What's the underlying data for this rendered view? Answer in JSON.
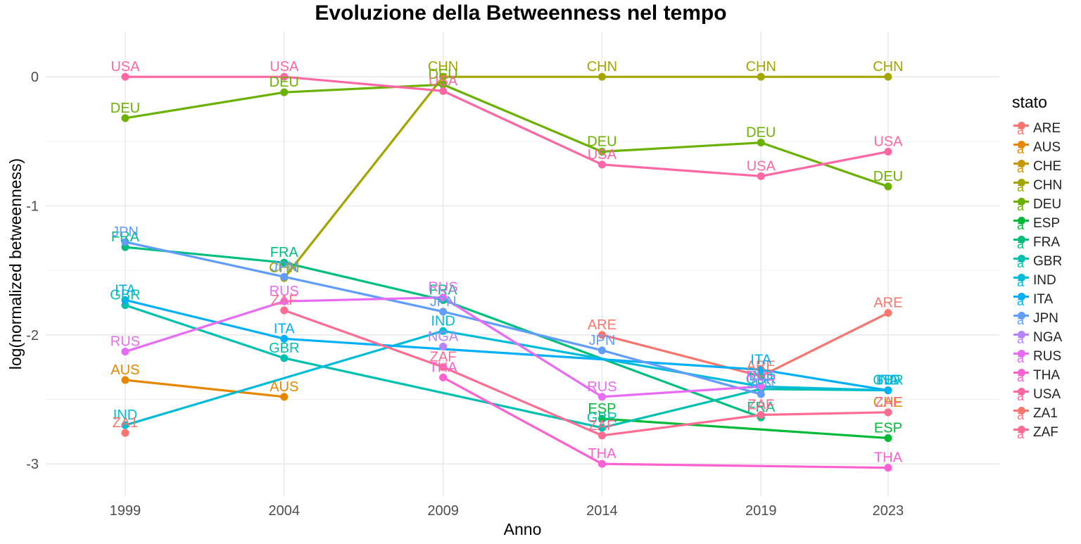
{
  "chart_data": {
    "type": "line",
    "title": "Evoluzione della Betweenness nel tempo",
    "xlabel": "Anno",
    "ylabel": "log(normalized betweenness)",
    "x": [
      1999,
      2004,
      2009,
      2014,
      2019,
      2023
    ],
    "xlim": [
      1996.5,
      2026.5
    ],
    "ylim": [
      -3.25,
      0.35
    ],
    "yticks": [
      0,
      -1,
      -2,
      -3
    ],
    "grid": true,
    "legend": {
      "title": "stato",
      "position": "right"
    },
    "series": [
      {
        "name": "ARE",
        "color": "#F8766D",
        "values": [
          null,
          null,
          null,
          -2.0,
          -2.32,
          -1.83
        ]
      },
      {
        "name": "AUS",
        "color": "#E58700",
        "values": [
          -2.35,
          -2.48,
          null,
          null,
          null,
          null
        ]
      },
      {
        "name": "CHE",
        "color": "#C99800",
        "values": [
          null,
          null,
          null,
          null,
          null,
          -2.6
        ]
      },
      {
        "name": "CHN",
        "color": "#A3A500",
        "values": [
          null,
          -1.56,
          0.0,
          0.0,
          0.0,
          0.0
        ]
      },
      {
        "name": "DEU",
        "color": "#6BB100",
        "values": [
          -0.32,
          -0.12,
          -0.06,
          -0.58,
          -0.51,
          -0.85
        ]
      },
      {
        "name": "ESP",
        "color": "#00BA38",
        "values": [
          null,
          null,
          null,
          -2.65,
          null,
          -2.8
        ]
      },
      {
        "name": "FRA",
        "color": "#00BF7D",
        "values": [
          -1.32,
          -1.44,
          -1.73,
          null,
          -2.64,
          null
        ]
      },
      {
        "name": "GBR",
        "color": "#00C0AF",
        "values": [
          -1.77,
          -2.18,
          null,
          -2.72,
          -2.42,
          -2.43
        ]
      },
      {
        "name": "IND",
        "color": "#00BCD8",
        "values": [
          -2.7,
          null,
          -1.97,
          null,
          -2.4,
          -2.43
        ]
      },
      {
        "name": "ITA",
        "color": "#00B0F6",
        "values": [
          -1.73,
          -2.03,
          null,
          null,
          -2.27,
          -2.43
        ]
      },
      {
        "name": "JPN",
        "color": "#619CFF",
        "values": [
          -1.28,
          -1.55,
          -1.82,
          -2.12,
          -2.46,
          null
        ]
      },
      {
        "name": "NGA",
        "color": "#B983FF",
        "values": [
          null,
          null,
          -2.09,
          null,
          null,
          null
        ]
      },
      {
        "name": "RUS",
        "color": "#E76BF3",
        "values": [
          -2.13,
          -1.74,
          -1.71,
          -2.48,
          -2.4,
          null
        ]
      },
      {
        "name": "THA",
        "color": "#FD61D1",
        "values": [
          null,
          null,
          -2.33,
          -3.0,
          null,
          -3.03
        ]
      },
      {
        "name": "USA",
        "color": "#FF67A4",
        "values": [
          0.0,
          0.0,
          -0.11,
          -0.68,
          -0.77,
          -0.58
        ]
      },
      {
        "name": "ZA1",
        "color": "#F8766D",
        "values": [
          -2.76,
          null,
          null,
          null,
          null,
          null
        ]
      },
      {
        "name": "ZAF",
        "color": "#FF6C91",
        "values": [
          null,
          -1.81,
          -2.25,
          -2.78,
          -2.62,
          -2.6
        ]
      }
    ]
  }
}
